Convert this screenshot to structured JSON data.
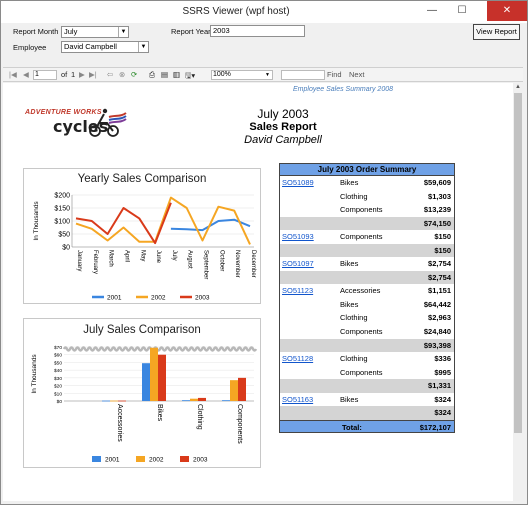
{
  "window": {
    "title": "SSRS Viewer (wpf host)",
    "minimize": "—",
    "maximize": "☐",
    "close": "✕"
  },
  "params": {
    "report_month_label": "Report Month",
    "report_month_value": "July",
    "report_year_label": "Report Year",
    "report_year_value": "2003",
    "employee_label": "Employee",
    "employee_value": "David Campbell",
    "view_report": "View Report"
  },
  "toolbar": {
    "page_current": "1",
    "page_of": "of",
    "page_total": "1",
    "zoom": "100%",
    "find": "Find",
    "next": "Next"
  },
  "report": {
    "header": "Employee Sales Summary 2008",
    "logo_top": "ADVENTURE WORKS",
    "logo_bottom": "cycles",
    "title_month_year": "July  2003",
    "title_report": "Sales Report",
    "title_employee": "David Campbell"
  },
  "colors": {
    "s2001": "#3a86e0",
    "s2002": "#f5a623",
    "s2003": "#d93a1a",
    "summary_header": "#6fa1e6"
  },
  "chart_data": [
    {
      "type": "line",
      "title": "Yearly Sales Comparison",
      "ylabel": "In Thousands",
      "categories": [
        "January",
        "February",
        "March",
        "April",
        "May",
        "June",
        "July",
        "August",
        "September",
        "October",
        "November",
        "December"
      ],
      "yticks": [
        "$200",
        "$150",
        "$100",
        "$50",
        "$0"
      ],
      "ylim": [
        0,
        200
      ],
      "series": [
        {
          "name": "2001",
          "values": [
            null,
            null,
            null,
            null,
            null,
            null,
            70,
            68,
            65,
            100,
            105,
            80
          ]
        },
        {
          "name": "2002",
          "values": [
            90,
            70,
            25,
            75,
            20,
            20,
            190,
            150,
            25,
            155,
            140,
            10
          ]
        },
        {
          "name": "2003",
          "values": [
            110,
            100,
            50,
            150,
            110,
            15,
            170,
            null,
            null,
            null,
            null,
            null
          ]
        }
      ],
      "legend": "bottom"
    },
    {
      "type": "bar",
      "title": "July  Sales Comparison",
      "ylabel": "In Thousands",
      "categories": [
        "Accessories",
        "Bikes",
        "Clothing",
        "Components"
      ],
      "yticks": [
        "$70",
        "$60",
        "$50",
        "$40",
        "$30",
        "$20",
        "$10",
        "$0"
      ],
      "ylim": [
        0,
        70
      ],
      "series": [
        {
          "name": "2001",
          "values": [
            0.5,
            49,
            1,
            1
          ]
        },
        {
          "name": "2002",
          "values": [
            0.5,
            69,
            3,
            27
          ]
        },
        {
          "name": "2003",
          "values": [
            0.5,
            60,
            4,
            30
          ]
        }
      ],
      "legend": "bottom"
    }
  ],
  "summary": {
    "title": "July 2003 Order Summary",
    "rows": [
      {
        "order": "SO51089",
        "category": "Bikes",
        "amount": "$59,609",
        "type": "item"
      },
      {
        "order": "",
        "category": "Clothing",
        "amount": "$1,303",
        "type": "item"
      },
      {
        "order": "",
        "category": "Components",
        "amount": "$13,239",
        "type": "item"
      },
      {
        "order": "",
        "category": "",
        "amount": "$74,150",
        "type": "sub"
      },
      {
        "order": "SO51093",
        "category": "Components",
        "amount": "$150",
        "type": "item"
      },
      {
        "order": "",
        "category": "",
        "amount": "$150",
        "type": "sub"
      },
      {
        "order": "SO51097",
        "category": "Bikes",
        "amount": "$2,754",
        "type": "item"
      },
      {
        "order": "",
        "category": "",
        "amount": "$2,754",
        "type": "sub"
      },
      {
        "order": "SO51123",
        "category": "Accessories",
        "amount": "$1,151",
        "type": "item"
      },
      {
        "order": "",
        "category": "Bikes",
        "amount": "$64,442",
        "type": "item"
      },
      {
        "order": "",
        "category": "Clothing",
        "amount": "$2,963",
        "type": "item"
      },
      {
        "order": "",
        "category": "Components",
        "amount": "$24,840",
        "type": "item"
      },
      {
        "order": "",
        "category": "",
        "amount": "$93,398",
        "type": "sub"
      },
      {
        "order": "SO51128",
        "category": "Clothing",
        "amount": "$336",
        "type": "item"
      },
      {
        "order": "",
        "category": "Components",
        "amount": "$995",
        "type": "item"
      },
      {
        "order": "",
        "category": "",
        "amount": "$1,331",
        "type": "sub"
      },
      {
        "order": "SO51163",
        "category": "Bikes",
        "amount": "$324",
        "type": "item"
      },
      {
        "order": "",
        "category": "",
        "amount": "$324",
        "type": "sub"
      }
    ],
    "total_label": "Total:",
    "total_amount": "$172,107"
  }
}
